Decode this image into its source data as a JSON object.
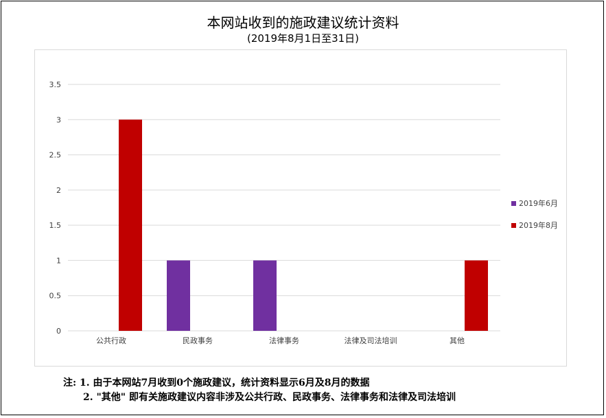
{
  "chart_data": {
    "type": "bar",
    "title": "本网站收到的施政建议统计资料",
    "subtitle": "(2019年8月1日至31日)",
    "categories": [
      "公共行政",
      "民政事务",
      "法律事务",
      "法律及司法培训",
      "其他"
    ],
    "series": [
      {
        "name": "2019年6月",
        "color": "#7030a0",
        "values": [
          0,
          1,
          1,
          0,
          0
        ]
      },
      {
        "name": "2019年8月",
        "color": "#c00000",
        "values": [
          3,
          0,
          0,
          0,
          1
        ]
      }
    ],
    "ylim": [
      0,
      3.5
    ],
    "yticks": [
      "0",
      "0.5",
      "1",
      "1.5",
      "2",
      "2.5",
      "3",
      "3.5"
    ],
    "grid": true,
    "legend_position": "right"
  },
  "notes": {
    "line1": "注: 1. 由于本网站7月收到0个施政建议，统计资料显示6月及8月的数据",
    "line2": "2. \"其他\" 即有关施政建议内容非涉及公共行政、民政事务、法律事务和法律及司法培训"
  }
}
